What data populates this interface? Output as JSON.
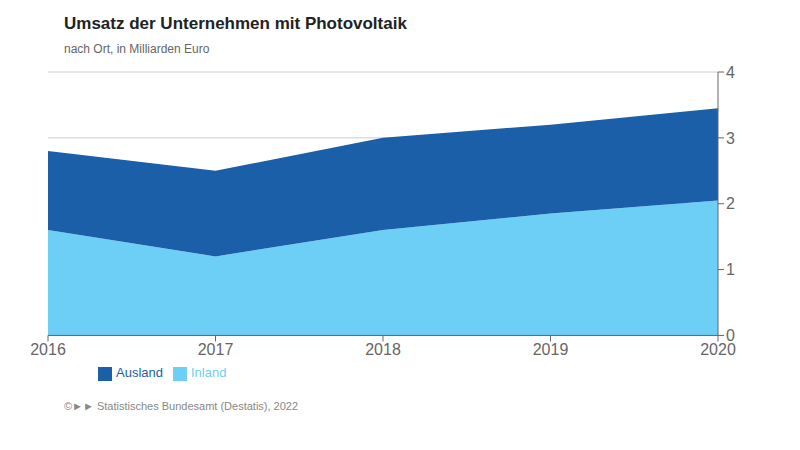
{
  "chart_data": {
    "type": "area",
    "title": "Umsatz der Unternehmen mit Photovoltaik",
    "subtitle": "nach Ort, in Milliarden Euro",
    "source": "©►► Statistisches Bundesamt (Destatis), 2022",
    "x": [
      2016,
      2017,
      2018,
      2019,
      2020
    ],
    "series": [
      {
        "name": "Inland",
        "color": "#6dcff6",
        "values": [
          1.6,
          1.2,
          1.6,
          1.85,
          2.05
        ]
      },
      {
        "name": "Ausland",
        "color": "#1a5fa8",
        "values": [
          1.2,
          1.3,
          1.4,
          1.35,
          1.4
        ]
      }
    ],
    "xlim": [
      2016,
      2020
    ],
    "xticks": [
      2016,
      2017,
      2018,
      2019,
      2020
    ],
    "ylim": [
      0,
      4
    ],
    "yticks": [
      0,
      1,
      2,
      3,
      4
    ],
    "stacked": true,
    "grid": true,
    "legend": "bottom"
  }
}
